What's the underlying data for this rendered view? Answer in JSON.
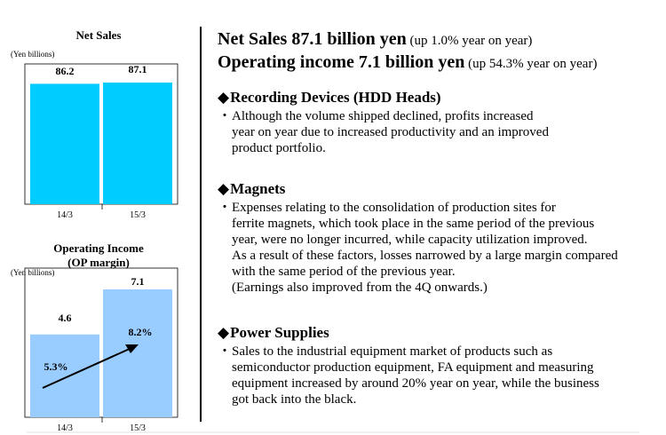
{
  "chart_data": [
    {
      "type": "bar",
      "title": "Net Sales",
      "unit_label": "(Yen billions)",
      "categories": [
        "14/3",
        "15/3"
      ],
      "values": [
        86.2,
        87.1
      ],
      "value_labels": [
        "86.2",
        "87.1"
      ],
      "color": "#00ccff"
    },
    {
      "type": "bar",
      "title": "Operating Income\n(OP margin)",
      "title_lines": [
        "Operating Income",
        "(OP margin)"
      ],
      "unit_label": "(Yen billions)",
      "categories": [
        "14/3",
        "15/3"
      ],
      "values": [
        4.6,
        7.1
      ],
      "value_labels": [
        "4.6",
        "7.1"
      ],
      "margins": [
        "5.3%",
        "8.2%"
      ],
      "color": "#99ccff"
    }
  ],
  "headline": {
    "line1_main": "Net Sales 87.1 billion yen",
    "line1_note": " (up 1.0% year on year)",
    "line2_main": "Operating income 7.1 billion yen",
    "line2_note": " (up 54.3% year on year)"
  },
  "sections": [
    {
      "diamond": "◆",
      "title": "Recording Devices (HDD Heads)",
      "bullet": "・",
      "lines": [
        "Although the volume shipped declined, profits increased",
        "year on year due to increased productivity and an improved",
        "product portfolio."
      ]
    },
    {
      "diamond": "◆",
      "title": "Magnets",
      "bullet": "・",
      "lines": [
        "Expenses relating to the consolidation of production sites for",
        "ferrite magnets, which took place in the same period of the previous",
        "year, were no longer incurred, while capacity utilization improved.",
        "As a result of these factors, losses narrowed by a large margin compared",
        "with the same period of the previous year.",
        "(Earnings also improved from the 4Q onwards.)"
      ]
    },
    {
      "diamond": "◆",
      "title": "Power Supplies",
      "bullet": "・",
      "lines": [
        "Sales to the industrial equipment market of products such as",
        "semiconductor production equipment, FA equipment and measuring",
        "equipment increased by around 20% year on year, while the business",
        "got back into the black."
      ]
    }
  ]
}
